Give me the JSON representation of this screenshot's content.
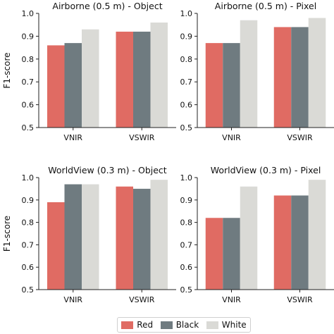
{
  "y_axis_label": "F1-score",
  "chart_data": [
    {
      "type": "bar",
      "title": "Airborne (0.5 m) - Object",
      "categories": [
        "VNIR",
        "VSWIR"
      ],
      "series": [
        {
          "name": "Red",
          "values": [
            0.86,
            0.92
          ]
        },
        {
          "name": "Black",
          "values": [
            0.87,
            0.92
          ]
        },
        {
          "name": "White",
          "values": [
            0.93,
            0.96
          ]
        }
      ],
      "ylabel": "F1-score",
      "yticks": [
        "0.5",
        "0.6",
        "0.7",
        "0.8",
        "0.9",
        "1.0"
      ],
      "ylim": [
        0.5,
        1.0
      ]
    },
    {
      "type": "bar",
      "title": "Airborne (0.5 m) - Pixel",
      "categories": [
        "VNIR",
        "VSWIR"
      ],
      "series": [
        {
          "name": "Red",
          "values": [
            0.87,
            0.94
          ]
        },
        {
          "name": "Black",
          "values": [
            0.87,
            0.94
          ]
        },
        {
          "name": "White",
          "values": [
            0.97,
            0.98
          ]
        }
      ],
      "ylabel": "",
      "yticks": [
        "0.5",
        "0.6",
        "0.7",
        "0.8",
        "0.9",
        "1.0"
      ],
      "ylim": [
        0.5,
        1.0
      ]
    },
    {
      "type": "bar",
      "title": "WorldView (0.3 m) - Object",
      "categories": [
        "VNIR",
        "VSWIR"
      ],
      "series": [
        {
          "name": "Red",
          "values": [
            0.89,
            0.96
          ]
        },
        {
          "name": "Black",
          "values": [
            0.97,
            0.95
          ]
        },
        {
          "name": "White",
          "values": [
            0.97,
            0.99
          ]
        }
      ],
      "ylabel": "F1-score",
      "yticks": [
        "0.5",
        "0.6",
        "0.7",
        "0.8",
        "0.9",
        "1.0"
      ],
      "ylim": [
        0.5,
        1.0
      ]
    },
    {
      "type": "bar",
      "title": "WorldView (0.3 m) - Pixel",
      "categories": [
        "VNIR",
        "VSWIR"
      ],
      "series": [
        {
          "name": "Red",
          "values": [
            0.82,
            0.92
          ]
        },
        {
          "name": "Black",
          "values": [
            0.82,
            0.92
          ]
        },
        {
          "name": "White",
          "values": [
            0.96,
            0.99
          ]
        }
      ],
      "ylabel": "",
      "yticks": [
        "0.5",
        "0.6",
        "0.7",
        "0.8",
        "0.9",
        "1.0"
      ],
      "ylim": [
        0.5,
        1.0
      ]
    }
  ],
  "legend": {
    "placement": "bottom-center",
    "items": [
      {
        "label": "Red",
        "color": "#e06b63"
      },
      {
        "label": "Black",
        "color": "#6f7b80"
      },
      {
        "label": "White",
        "color": "#dadad6"
      }
    ]
  },
  "colors": {
    "Red": "#e06b63",
    "Black": "#6f7b80",
    "White": "#dadad6"
  }
}
